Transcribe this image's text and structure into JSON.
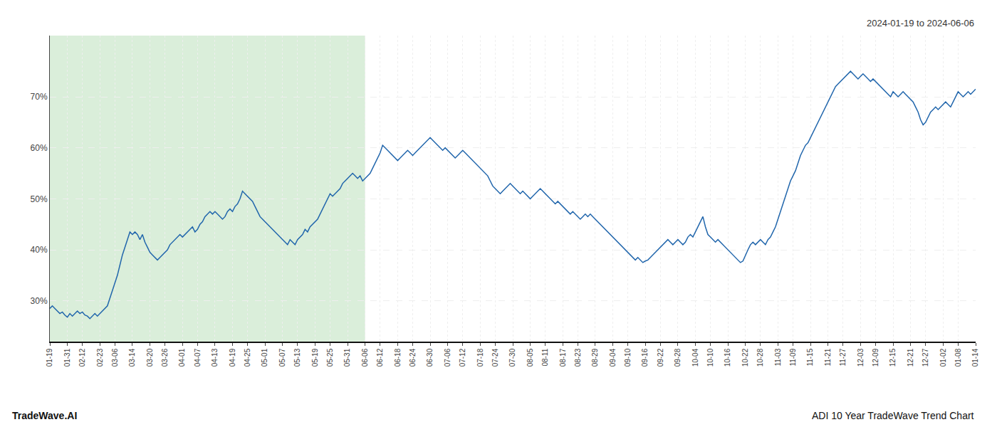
{
  "chart_data": {
    "type": "line",
    "title": "ADI 10 Year TradeWave Trend Chart",
    "subtitle": "2024-01-19 to 2024-06-06",
    "annotations": [
      "TradeWave.AI"
    ],
    "color": "#2166ac",
    "shade": {
      "from": "01-19",
      "to": "06-06",
      "color": "#daeeda"
    },
    "ylim": [
      22,
      82
    ],
    "yticks": [
      {
        "value": 30,
        "label": "30%"
      },
      {
        "value": 40,
        "label": "40%"
      },
      {
        "value": 50,
        "label": "50%"
      },
      {
        "value": 60,
        "label": "60%"
      },
      {
        "value": 70,
        "label": "70%"
      }
    ],
    "grid": true,
    "categories": [
      "01-19",
      null,
      null,
      null,
      null,
      null,
      null,
      "01-31",
      null,
      null,
      null,
      null,
      null,
      "02-12",
      null,
      null,
      null,
      null,
      null,
      null,
      "02-23",
      null,
      null,
      null,
      null,
      null,
      "03-06",
      null,
      null,
      null,
      null,
      null,
      null,
      "03-14",
      null,
      null,
      null,
      null,
      null,
      null,
      "03-20",
      null,
      null,
      null,
      null,
      null,
      "03-26",
      null,
      null,
      null,
      null,
      null,
      null,
      "04-01",
      null,
      null,
      null,
      null,
      null,
      "04-07",
      null,
      null,
      null,
      null,
      null,
      null,
      "04-13",
      null,
      null,
      null,
      null,
      null,
      null,
      "04-19",
      null,
      null,
      null,
      null,
      null,
      "04-25",
      null,
      null,
      null,
      null,
      null,
      null,
      "05-01",
      null,
      null,
      null,
      null,
      null,
      null,
      "05-07",
      null,
      null,
      null,
      null,
      null,
      "05-13",
      null,
      null,
      null,
      null,
      null,
      null,
      "05-19",
      null,
      null,
      null,
      null,
      null,
      "05-25",
      null,
      null,
      null,
      null,
      null,
      null,
      "05-31",
      null,
      null,
      null,
      null,
      null,
      null,
      "06-06",
      null,
      null,
      null,
      null,
      null,
      "06-12",
      null,
      null,
      null,
      null,
      null,
      null,
      "06-18",
      null,
      null,
      null,
      null,
      null,
      "06-24",
      null,
      null,
      null,
      null,
      null,
      null,
      "06-30",
      null,
      null,
      null,
      null,
      null,
      null,
      "07-06",
      null,
      null,
      null,
      null,
      null,
      "07-12",
      null,
      null,
      null,
      null,
      null,
      null,
      "07-18",
      null,
      null,
      null,
      null,
      null,
      "07-24",
      null,
      null,
      null,
      null,
      null,
      null,
      "07-30",
      null,
      null,
      null,
      null,
      null,
      null,
      "08-05",
      null,
      null,
      null,
      null,
      null,
      "08-11",
      null,
      null,
      null,
      null,
      null,
      null,
      "08-17",
      null,
      null,
      null,
      null,
      null,
      "08-23",
      null,
      null,
      null,
      null,
      null,
      null,
      "08-29",
      null,
      null,
      null,
      null,
      null,
      null,
      "09-04",
      null,
      null,
      null,
      null,
      null,
      "09-10",
      null,
      null,
      null,
      null,
      null,
      null,
      "09-16",
      null,
      null,
      null,
      null,
      null,
      "09-22",
      null,
      null,
      null,
      null,
      null,
      null,
      "09-28",
      null,
      null,
      null,
      null,
      null,
      null,
      "10-04",
      null,
      null,
      null,
      null,
      null,
      "10-10",
      null,
      null,
      null,
      null,
      null,
      null,
      "10-16",
      null,
      null,
      null,
      null,
      null,
      null,
      "10-22",
      null,
      null,
      null,
      null,
      null,
      "10-28",
      null,
      null,
      null,
      null,
      null,
      null,
      "11-03",
      null,
      null,
      null,
      null,
      null,
      "11-09",
      null,
      null,
      null,
      null,
      null,
      null,
      "11-15",
      null,
      null,
      null,
      null,
      null,
      null,
      "11-21",
      null,
      null,
      null,
      null,
      null,
      "11-27",
      null,
      null,
      null,
      null,
      null,
      null,
      "12-03",
      null,
      null,
      null,
      null,
      null,
      "12-09",
      null,
      null,
      null,
      null,
      null,
      null,
      "12-15",
      null,
      null,
      null,
      null,
      null,
      null,
      "12-21",
      null,
      null,
      null,
      null,
      null,
      "12-27",
      null,
      null,
      null,
      null,
      null,
      null,
      "01-02",
      null,
      null,
      null,
      null,
      null,
      "01-08",
      null,
      null,
      null,
      null,
      null,
      null,
      "01-14"
    ],
    "values": [
      28.5,
      29.0,
      28.5,
      28.0,
      27.5,
      27.8,
      27.2,
      26.8,
      27.5,
      27.0,
      27.5,
      28.0,
      27.5,
      27.8,
      27.2,
      27.0,
      26.5,
      27.0,
      27.5,
      27.0,
      27.5,
      28.0,
      28.5,
      29.0,
      30.5,
      32.0,
      33.5,
      35.0,
      37.0,
      39.0,
      40.5,
      42.0,
      43.5,
      43.0,
      43.5,
      43.0,
      42.0,
      43.0,
      41.5,
      40.5,
      39.5,
      39.0,
      38.5,
      38.0,
      38.5,
      39.0,
      39.5,
      40.0,
      41.0,
      41.5,
      42.0,
      42.5,
      43.0,
      42.5,
      43.0,
      43.5,
      44.0,
      44.5,
      43.5,
      44.0,
      45.0,
      45.5,
      46.5,
      47.0,
      47.5,
      47.0,
      47.5,
      47.0,
      46.5,
      46.0,
      46.5,
      47.5,
      48.0,
      47.5,
      48.5,
      49.0,
      50.0,
      51.5,
      51.0,
      50.5,
      50.0,
      49.5,
      48.5,
      47.5,
      46.5,
      46.0,
      45.5,
      45.0,
      44.5,
      44.0,
      43.5,
      43.0,
      42.5,
      42.0,
      41.5,
      41.0,
      42.0,
      41.5,
      41.0,
      42.0,
      42.5,
      43.0,
      44.0,
      43.5,
      44.5,
      45.0,
      45.5,
      46.0,
      47.0,
      48.0,
      49.0,
      50.0,
      51.0,
      50.5,
      51.0,
      51.5,
      52.0,
      53.0,
      53.5,
      54.0,
      54.5,
      55.0,
      54.5,
      54.0,
      54.5,
      53.5,
      54.0,
      54.5,
      55.0,
      56.0,
      57.0,
      58.0,
      59.0,
      60.5,
      60.0,
      59.5,
      59.0,
      58.5,
      58.0,
      57.5,
      58.0,
      58.5,
      59.0,
      59.5,
      59.0,
      58.5,
      59.0,
      59.5,
      60.0,
      60.5,
      61.0,
      61.5,
      62.0,
      61.5,
      61.0,
      60.5,
      60.0,
      59.5,
      60.0,
      59.5,
      59.0,
      58.5,
      58.0,
      58.5,
      59.0,
      59.5,
      59.0,
      58.5,
      58.0,
      57.5,
      57.0,
      56.5,
      56.0,
      55.5,
      55.0,
      54.5,
      53.5,
      52.5,
      52.0,
      51.5,
      51.0,
      51.5,
      52.0,
      52.5,
      53.0,
      52.5,
      52.0,
      51.5,
      51.0,
      51.5,
      51.0,
      50.5,
      50.0,
      50.5,
      51.0,
      51.5,
      52.0,
      51.5,
      51.0,
      50.5,
      50.0,
      49.5,
      49.0,
      49.5,
      49.0,
      48.5,
      48.0,
      47.5,
      47.0,
      47.5,
      47.0,
      46.5,
      46.0,
      46.5,
      47.0,
      46.5,
      47.0,
      46.5,
      46.0,
      45.5,
      45.0,
      44.5,
      44.0,
      43.5,
      43.0,
      42.5,
      42.0,
      41.5,
      41.0,
      40.5,
      40.0,
      39.5,
      39.0,
      38.5,
      38.0,
      38.5,
      38.0,
      37.5,
      37.8,
      38.0,
      38.5,
      39.0,
      39.5,
      40.0,
      40.5,
      41.0,
      41.5,
      42.0,
      41.5,
      41.0,
      41.5,
      42.0,
      41.5,
      41.0,
      41.5,
      42.5,
      43.0,
      42.5,
      43.5,
      44.5,
      45.5,
      46.5,
      44.5,
      43.0,
      42.5,
      42.0,
      41.5,
      42.0,
      41.5,
      41.0,
      40.5,
      40.0,
      39.5,
      39.0,
      38.5,
      38.0,
      37.5,
      37.8,
      39.0,
      40.0,
      41.0,
      41.5,
      41.0,
      41.5,
      42.0,
      41.5,
      41.0,
      42.0,
      42.5,
      43.5,
      44.5,
      46.0,
      47.5,
      49.0,
      50.5,
      52.0,
      53.5,
      54.5,
      55.5,
      57.0,
      58.5,
      59.5,
      60.5,
      61.0,
      62.0,
      63.0,
      64.0,
      65.0,
      66.0,
      67.0,
      68.0,
      69.0,
      70.0,
      71.0,
      72.0,
      72.5,
      73.0,
      73.5,
      74.0,
      74.5,
      75.0,
      74.5,
      74.0,
      73.5,
      74.0,
      74.5,
      74.0,
      73.5,
      73.0,
      73.5,
      73.0,
      72.5,
      72.0,
      71.5,
      71.0,
      70.5,
      70.0,
      71.0,
      70.5,
      70.0,
      70.5,
      71.0,
      70.5,
      70.0,
      69.5,
      69.0,
      68.0,
      67.0,
      65.5,
      64.5,
      65.0,
      66.0,
      67.0,
      67.5,
      68.0,
      67.5,
      68.0,
      68.5,
      69.0,
      68.5,
      68.0,
      69.0,
      70.0,
      71.0,
      70.5,
      70.0,
      70.5,
      71.0,
      70.5,
      71.0,
      71.5
    ]
  }
}
